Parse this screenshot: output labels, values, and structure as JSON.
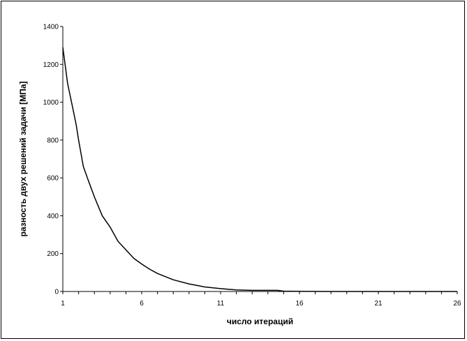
{
  "chart_data": {
    "type": "line",
    "title": "",
    "xlabel": "число итераций",
    "ylabel": "разность двух решений задачи  [МПа]",
    "xlim": [
      1,
      26
    ],
    "ylim": [
      0,
      1400
    ],
    "x_ticks": [
      1,
      6,
      11,
      16,
      21,
      26
    ],
    "y_ticks": [
      0,
      200,
      400,
      600,
      800,
      1000,
      1200,
      1400
    ],
    "grid": false,
    "legend": "none",
    "series": [
      {
        "color": "#000000",
        "x": [
          1,
          1.3,
          1.6,
          1.85,
          2,
          2.3,
          2.6,
          3,
          3.5,
          4,
          4.5,
          5,
          5.5,
          6,
          6.5,
          7,
          8,
          9,
          10,
          11,
          12,
          13,
          14,
          14.6,
          15,
          16,
          18,
          20,
          22,
          24,
          26
        ],
        "y": [
          1290,
          1100,
          980,
          880,
          800,
          660,
          590,
          500,
          400,
          340,
          265,
          220,
          175,
          145,
          118,
          95,
          62,
          40,
          24,
          15,
          8,
          6,
          6,
          6,
          2,
          1,
          0,
          0,
          0,
          0,
          0
        ]
      }
    ]
  }
}
